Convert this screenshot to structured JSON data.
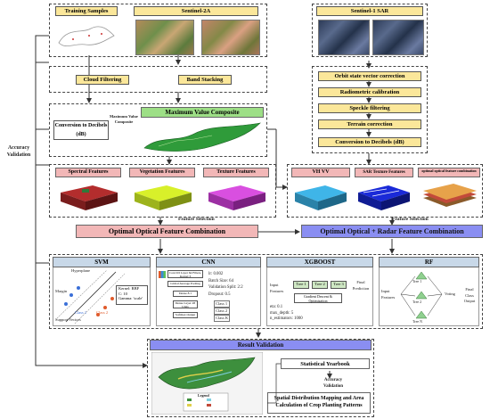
{
  "left_label": {
    "line1": "Accuracy",
    "line2": "Validation"
  },
  "inputs": {
    "training": "Training Samples",
    "s2": "Sentinel-2A",
    "s1": "Sentinel-1 SAR"
  },
  "s2_steps": {
    "cloud": "Cloud Filtering",
    "band": "Band Stacking"
  },
  "mvc": {
    "title": "Maximum Value Composite",
    "side_label": "Maximum Value Composite",
    "convert": "Conversion to Decibels (dB)"
  },
  "sar_steps": [
    "Orbit state vector correction",
    "Radiometric calibration",
    "Speckle filtering",
    "Terrain correction",
    "Conversion to Decibels (dB)"
  ],
  "optical_features": [
    "Spectral Features",
    "Vegetation Features",
    "Texture Features"
  ],
  "radar_features": [
    "VH  VV",
    "SAR Texture Features",
    "optimal optical feature combination"
  ],
  "feature_selection": "Feature Selection",
  "combos": {
    "optical": "Optimal Optical Feature Combination",
    "radar": "Optimal Optical + Radar Feature Combination"
  },
  "models": {
    "svm": {
      "title": "SVM",
      "hyperplane": "Hyperplane",
      "margin": "Margin",
      "support": "Support Vectors",
      "class1": "Class 1",
      "class2": "Class 2",
      "params": [
        "Kernel: RBF",
        "C: 10",
        "Gamma: 'scale'"
      ]
    },
    "cnn": {
      "title": "CNN",
      "layers": [
        "Conv1D Layer 64 Filters, Kernel 3",
        "Global Average Pooling",
        "Dense 8.1",
        "Dense Layer 28 Units",
        "Softmax Output"
      ],
      "params": [
        "lr: 0.002",
        "Batch Size: 64",
        "Validation Split: 2:2",
        "Dropout: 0.5"
      ],
      "classes": [
        "Class 1",
        "Class 2",
        "Class K"
      ]
    },
    "xgb": {
      "title": "XGBOOST",
      "input": "Input Features",
      "trees": [
        "Tree 1",
        "Tree 2",
        "Tree 3"
      ],
      "final": "Final Prediction",
      "gd": "Gradient Descent & Optimization",
      "params": [
        "eta: 0.1",
        "max_depth: 5",
        "n_estimators: 1000"
      ]
    },
    "rf": {
      "title": "RF",
      "input": "Input Features",
      "trees": [
        "Tree 1",
        "Tree 2",
        "Tree N"
      ],
      "voting": "Voting",
      "final": "Final Class Output"
    }
  },
  "result": {
    "title": "Result Validation",
    "yearbook": "Statistical Yearbook",
    "validation": [
      "Accuracy",
      "Validation"
    ],
    "spatial": "Spatial Distribution Mapping and Area Calculation of Crop Planting Patterns",
    "legend": "Legend"
  },
  "colors": {
    "yellow": "#fbe79a",
    "green": "#9ddf86",
    "pink": "#f2b7b7",
    "blue": "#8a8ef2",
    "line": "#333333"
  }
}
